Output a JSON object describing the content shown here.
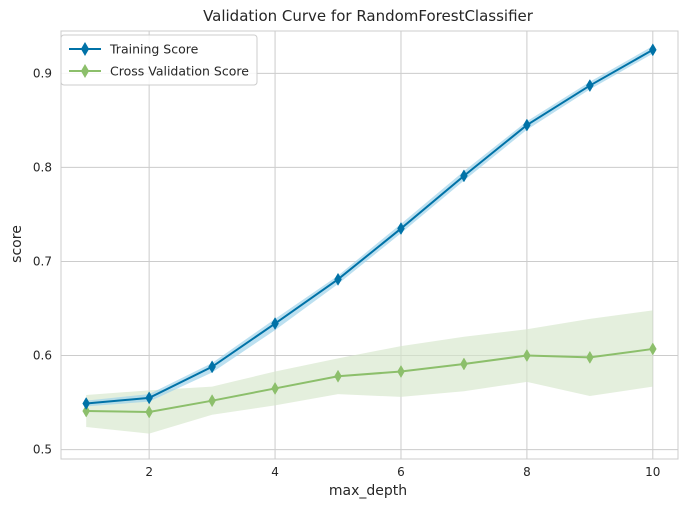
{
  "chart_data": {
    "type": "line",
    "title": "Validation Curve for RandomForestClassifier",
    "xlabel": "max_depth",
    "ylabel": "score",
    "x": [
      1,
      2,
      3,
      4,
      5,
      6,
      7,
      8,
      9,
      10
    ],
    "xlim": [
      0.6,
      10.4
    ],
    "ylim": [
      0.49,
      0.945
    ],
    "xticks": [
      2,
      4,
      6,
      8,
      10
    ],
    "yticks": [
      0.5,
      0.6,
      0.7,
      0.8,
      0.9
    ],
    "xtick_labels": [
      "2",
      "4",
      "6",
      "8",
      "10"
    ],
    "ytick_labels": [
      "0.5",
      "0.6",
      "0.7",
      "0.8",
      "0.9"
    ],
    "grid": true,
    "legend_position": "top-left",
    "series": [
      {
        "name": "Training Score",
        "color": "#0072a7",
        "band_color": "#9fd3ea",
        "values": [
          0.549,
          0.555,
          0.588,
          0.634,
          0.681,
          0.735,
          0.791,
          0.845,
          0.887,
          0.925
        ],
        "lower": [
          0.546,
          0.551,
          0.582,
          0.627,
          0.676,
          0.73,
          0.786,
          0.84,
          0.883,
          0.921
        ],
        "upper": [
          0.552,
          0.559,
          0.592,
          0.639,
          0.685,
          0.74,
          0.796,
          0.849,
          0.891,
          0.929
        ]
      },
      {
        "name": "Cross Validation Score",
        "color": "#8cbf6b",
        "band_color": "#d6e7cb",
        "values": [
          0.541,
          0.54,
          0.552,
          0.565,
          0.578,
          0.583,
          0.591,
          0.6,
          0.598,
          0.607
        ],
        "lower": [
          0.524,
          0.517,
          0.537,
          0.547,
          0.559,
          0.556,
          0.562,
          0.572,
          0.557,
          0.567
        ],
        "upper": [
          0.558,
          0.563,
          0.567,
          0.583,
          0.597,
          0.61,
          0.62,
          0.628,
          0.639,
          0.648
        ]
      }
    ]
  }
}
